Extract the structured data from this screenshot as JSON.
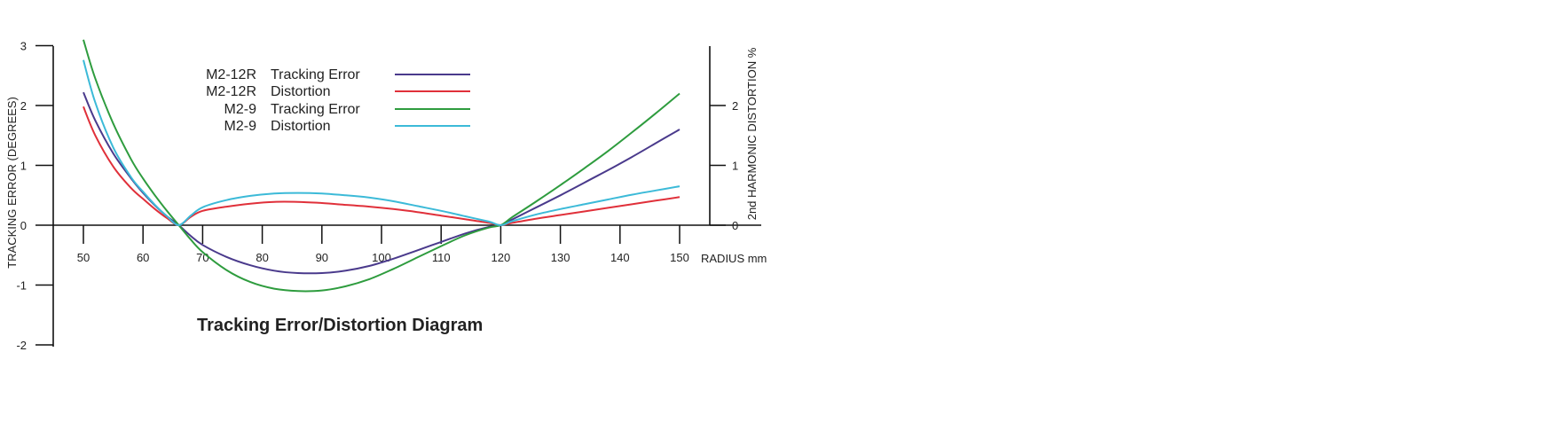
{
  "chart_data": {
    "type": "line",
    "title": "Tracking Error/Distortion Diagram",
    "xlabel": "RADIUS mm",
    "ylabel_left": "TRACKING ERROR (DEGREES)",
    "ylabel_right": "2nd HARMONIC DISTORTION %",
    "xlim": [
      50,
      150
    ],
    "ylim_left": [
      -2,
      3
    ],
    "ylim_right": [
      0,
      3
    ],
    "x_ticks": [
      50,
      60,
      70,
      80,
      90,
      100,
      110,
      120,
      130,
      140,
      150
    ],
    "y_left_ticks": [
      -2,
      -1,
      0,
      1,
      2,
      3
    ],
    "y_right_ticks": [
      0,
      1,
      2
    ],
    "grid": false,
    "legend_position": "top-left",
    "series": [
      {
        "model": "M2-12R",
        "kind": "Tracking Error",
        "color": "#4a3a8c",
        "axis": "left",
        "x": [
          50,
          52,
          55,
          58,
          60,
          62,
          64,
          66,
          68,
          70,
          74,
          78,
          82,
          86,
          90,
          94,
          98,
          102,
          106,
          110,
          114,
          118,
          120,
          122,
          126,
          130,
          134,
          138,
          142,
          146,
          150
        ],
        "y": [
          2.22,
          1.75,
          1.2,
          0.78,
          0.54,
          0.33,
          0.15,
          0.0,
          -0.18,
          -0.33,
          -0.53,
          -0.67,
          -0.76,
          -0.8,
          -0.8,
          -0.76,
          -0.68,
          -0.56,
          -0.42,
          -0.28,
          -0.14,
          -0.03,
          0.0,
          0.1,
          0.3,
          0.5,
          0.71,
          0.92,
          1.14,
          1.37,
          1.6
        ]
      },
      {
        "model": "M2-12R",
        "kind": "Distortion",
        "color": "#e0303a",
        "axis": "right",
        "x": [
          50,
          52,
          55,
          58,
          60,
          62,
          64,
          66,
          68,
          70,
          74,
          78,
          82,
          86,
          90,
          94,
          98,
          102,
          106,
          110,
          114,
          118,
          120,
          122,
          126,
          130,
          134,
          138,
          142,
          146,
          150
        ],
        "y": [
          1.98,
          1.5,
          0.98,
          0.62,
          0.44,
          0.27,
          0.12,
          0.0,
          0.14,
          0.24,
          0.31,
          0.36,
          0.39,
          0.39,
          0.37,
          0.34,
          0.31,
          0.27,
          0.22,
          0.16,
          0.1,
          0.04,
          0.0,
          0.04,
          0.11,
          0.17,
          0.23,
          0.29,
          0.35,
          0.41,
          0.47
        ]
      },
      {
        "model": "M2-9",
        "kind": "Tracking Error",
        "color": "#2e9c3e",
        "axis": "left",
        "x": [
          50,
          52,
          55,
          58,
          60,
          62,
          64,
          66,
          68,
          70,
          74,
          78,
          82,
          86,
          90,
          94,
          98,
          102,
          106,
          110,
          114,
          118,
          120,
          122,
          126,
          130,
          134,
          138,
          142,
          146,
          150
        ],
        "y": [
          3.1,
          2.45,
          1.7,
          1.1,
          0.78,
          0.5,
          0.24,
          0.0,
          -0.24,
          -0.45,
          -0.75,
          -0.95,
          -1.06,
          -1.1,
          -1.09,
          -1.02,
          -0.9,
          -0.73,
          -0.54,
          -0.35,
          -0.17,
          -0.04,
          0.0,
          0.14,
          0.4,
          0.67,
          0.95,
          1.24,
          1.55,
          1.87,
          2.2
        ]
      },
      {
        "model": "M2-9",
        "kind": "Distortion",
        "color": "#3cbad8",
        "axis": "right",
        "x": [
          50,
          52,
          55,
          58,
          60,
          62,
          64,
          66,
          68,
          70,
          74,
          78,
          82,
          86,
          90,
          94,
          98,
          102,
          106,
          110,
          114,
          118,
          120,
          122,
          126,
          130,
          134,
          138,
          142,
          146,
          150
        ],
        "y": [
          2.76,
          2.05,
          1.3,
          0.8,
          0.56,
          0.34,
          0.15,
          0.0,
          0.16,
          0.3,
          0.42,
          0.49,
          0.53,
          0.54,
          0.53,
          0.5,
          0.46,
          0.4,
          0.32,
          0.24,
          0.15,
          0.06,
          0.0,
          0.07,
          0.18,
          0.27,
          0.35,
          0.43,
          0.51,
          0.58,
          0.65
        ]
      }
    ]
  }
}
